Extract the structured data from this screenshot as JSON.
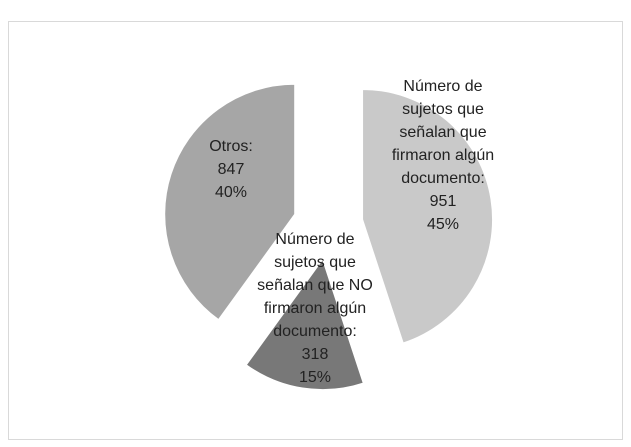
{
  "chart_data": {
    "type": "pie",
    "categories": [
      "Número de sujetos que señalan que firmaron algún documento:",
      "Número de sujetos que señalan que NO firmaron algún documento:",
      "Otros:"
    ],
    "values": [
      951,
      318,
      847
    ],
    "percent_labels": [
      "45%",
      "15%",
      "40%"
    ],
    "colors": [
      "#c9c9c9",
      "#787878",
      "#a6a6a6"
    ],
    "exploded": true
  }
}
